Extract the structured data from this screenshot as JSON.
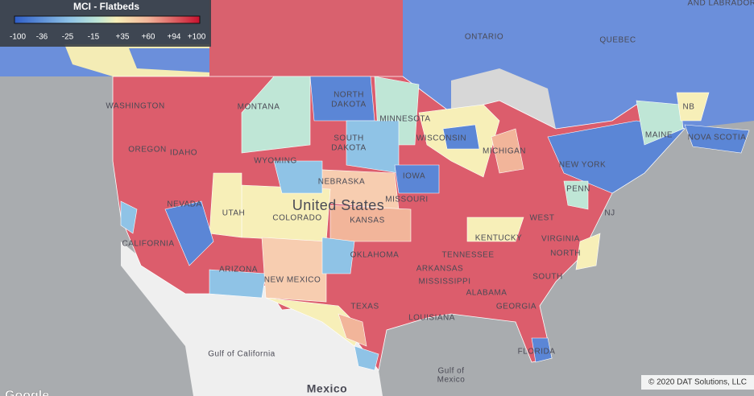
{
  "legend": {
    "title": "MCI - Flatbeds",
    "ticks": [
      "-100",
      "-36",
      "-25",
      "-15",
      "+35",
      "+60",
      "+94",
      "+100"
    ]
  },
  "places": [
    "AND LABRADOR",
    "ONTARIO",
    "QUEBEC",
    "NORTH",
    "DAKOTA",
    "MINNESOTA",
    "WASHINGTON",
    "MONTANA",
    "OREGON",
    "IDAHO",
    "SOUTH",
    "DAKOTA",
    "WYOMING",
    "WISCONSIN",
    "MICHIGAN",
    "NB",
    "MAINE",
    "NOVA SCOTIA",
    "NEW YORK",
    "PENN",
    "NJ",
    "IOWA",
    "NEBRASKA",
    "United States",
    "NEVADA",
    "UTAH",
    "COLORADO",
    "KANSAS",
    "MISSOURI",
    "KENTUCKY",
    "WEST",
    "VIRGINIA",
    "CALIFORNIA",
    "ARIZONA",
    "NEW MEXICO",
    "OKLAHOMA",
    "ARKANSAS",
    "TENNESSEE",
    "NORTH",
    "MISSISSIPPI",
    "SOUTH",
    "ALABAMA",
    "GEORGIA",
    "TEXAS",
    "LOUISIANA",
    "FLORIDA",
    "Gulf of California",
    "Gulf of",
    "Mexico",
    "Mexico"
  ],
  "copyright": "© 2020 DAT Solutions, LLC",
  "google": "Google"
}
